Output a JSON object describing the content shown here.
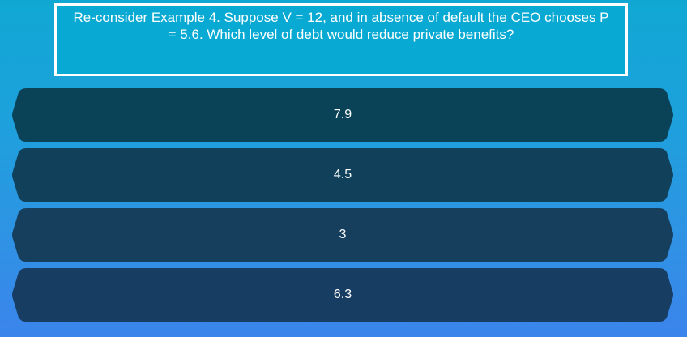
{
  "question": {
    "text": "Re-consider Example 4. Suppose V = 12, and in absence of default the CEO chooses P = 5.6. Which level of debt would reduce private benefits?"
  },
  "answers": [
    {
      "label": "7.9",
      "color": "#0a4257"
    },
    {
      "label": "4.5",
      "color": "#10405a"
    },
    {
      "label": "3",
      "color": "#163f5e"
    },
    {
      "label": "6.3",
      "color": "#183d62"
    }
  ],
  "colors": {
    "background_top": "#10a8d3",
    "background_bottom": "#3b84ec",
    "question_box": "#08a9d2",
    "question_border": "#ffffff",
    "text": "#ffffff"
  }
}
